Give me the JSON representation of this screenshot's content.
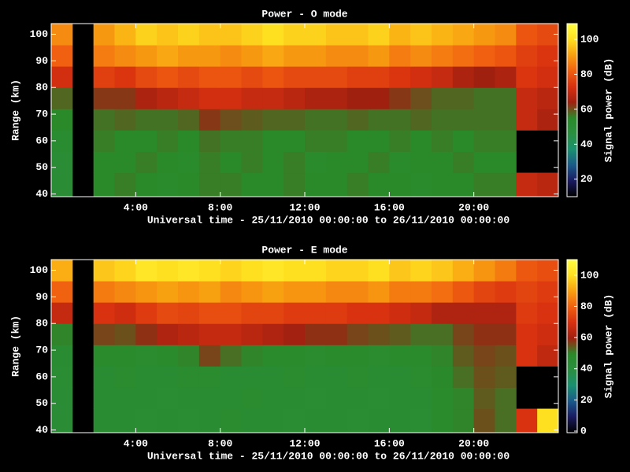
{
  "chart_data": [
    {
      "type": "heatmap",
      "title": "Power - O mode",
      "x_label": "Universal time - 25/11/2010 00:00:00 to 26/11/2010 00:00:00",
      "y_label": "Range (km)",
      "colorbar_label": "Signal power (dB)",
      "xlim": [
        0,
        24
      ],
      "ylim": [
        39,
        104
      ],
      "xticks": [
        {
          "value": 4,
          "label": "4:00"
        },
        {
          "value": 8,
          "label": "8:00"
        },
        {
          "value": 12,
          "label": "12:00"
        },
        {
          "value": 16,
          "label": "16:00"
        },
        {
          "value": 20,
          "label": "20:00"
        }
      ],
      "yticks": [
        40,
        50,
        60,
        70,
        80,
        90,
        100
      ],
      "clim": [
        10,
        109
      ],
      "cticks": [
        20,
        40,
        60,
        80,
        100
      ],
      "colormap": [
        "#000000",
        "#1a1a60",
        "#1a5a8a",
        "#1a9070",
        "#2a9040",
        "#2a8a2a",
        "#a02010",
        "#d83010",
        "#f06010",
        "#f8a010",
        "#ffe020",
        "#ffff40"
      ],
      "x_bins": [
        0,
        1,
        2,
        3,
        4,
        5,
        6,
        7,
        8,
        9,
        10,
        11,
        12,
        13,
        14,
        15,
        16,
        17,
        18,
        19,
        20,
        21,
        22,
        23,
        24
      ],
      "y_bins": [
        39,
        48,
        56,
        64,
        72,
        80,
        88,
        96,
        104
      ],
      "z": [
        [
          50,
          null,
          55,
          56,
          55,
          54,
          55,
          56,
          56,
          55,
          55,
          56,
          55,
          55,
          56,
          55,
          55,
          54,
          55,
          55,
          56,
          56,
          70,
          68
        ],
        [
          50,
          null,
          55,
          55,
          56,
          55,
          54,
          56,
          55,
          56,
          55,
          56,
          54,
          55,
          55,
          56,
          54,
          55,
          55,
          56,
          55,
          55,
          null,
          null
        ],
        [
          52,
          null,
          56,
          55,
          55,
          56,
          55,
          57,
          56,
          56,
          55,
          55,
          56,
          56,
          55,
          55,
          56,
          55,
          56,
          55,
          56,
          56,
          null,
          null
        ],
        [
          55,
          null,
          57,
          58,
          57,
          57,
          58,
          62,
          60,
          59,
          58,
          58,
          57,
          57,
          58,
          57,
          57,
          58,
          57,
          57,
          57,
          57,
          70,
          66
        ],
        [
          58,
          null,
          62,
          62,
          66,
          68,
          70,
          72,
          72,
          70,
          70,
          68,
          66,
          66,
          64,
          64,
          62,
          60,
          58,
          58,
          57,
          57,
          70,
          68
        ],
        [
          72,
          null,
          76,
          74,
          78,
          80,
          78,
          80,
          80,
          78,
          80,
          78,
          78,
          78,
          76,
          76,
          74,
          72,
          70,
          66,
          64,
          66,
          74,
          72
        ],
        [
          82,
          null,
          86,
          88,
          90,
          92,
          90,
          90,
          88,
          90,
          92,
          90,
          90,
          88,
          88,
          90,
          86,
          88,
          86,
          84,
          82,
          80,
          76,
          74
        ],
        [
          88,
          null,
          90,
          94,
          98,
          96,
          98,
          96,
          96,
          98,
          100,
          98,
          98,
          96,
          96,
          98,
          94,
          96,
          94,
          92,
          90,
          88,
          80,
          78
        ]
      ]
    },
    {
      "type": "heatmap",
      "title": "Power - E mode",
      "x_label": "Universal time - 25/11/2010 00:00:00 to 26/11/2010 00:00:00",
      "y_label": "Range (km)",
      "colorbar_label": "Signal power (dB)",
      "xlim": [
        0,
        24
      ],
      "ylim": [
        39,
        104
      ],
      "xticks": [
        {
          "value": 4,
          "label": "4:00"
        },
        {
          "value": 8,
          "label": "8:00"
        },
        {
          "value": 12,
          "label": "12:00"
        },
        {
          "value": 16,
          "label": "16:00"
        },
        {
          "value": 20,
          "label": "20:00"
        }
      ],
      "yticks": [
        40,
        50,
        60,
        70,
        80,
        90,
        100
      ],
      "clim": [
        -1,
        110
      ],
      "cticks": [
        0,
        20,
        40,
        60,
        80,
        100
      ],
      "colormap": [
        "#000000",
        "#1a1a60",
        "#1a5a8a",
        "#1a9070",
        "#2a9040",
        "#2a8a2a",
        "#a02010",
        "#d83010",
        "#f06010",
        "#f8a010",
        "#ffe020",
        "#ffff40"
      ],
      "x_bins": [
        0,
        1,
        2,
        3,
        4,
        5,
        6,
        7,
        8,
        9,
        10,
        11,
        12,
        13,
        14,
        15,
        16,
        17,
        18,
        19,
        20,
        21,
        22,
        23,
        24
      ],
      "y_bins": [
        39,
        48,
        56,
        64,
        72,
        80,
        88,
        96,
        104
      ],
      "z": [
        [
          44,
          null,
          46,
          46,
          45,
          46,
          45,
          46,
          47,
          46,
          46,
          45,
          46,
          46,
          45,
          46,
          46,
          45,
          48,
          50,
          55,
          52,
          70,
          100
        ],
        [
          44,
          null,
          46,
          46,
          46,
          45,
          46,
          46,
          46,
          47,
          46,
          46,
          45,
          46,
          46,
          45,
          46,
          46,
          48,
          50,
          54,
          52,
          null,
          null
        ],
        [
          45,
          null,
          46,
          47,
          46,
          46,
          47,
          47,
          46,
          46,
          46,
          47,
          46,
          46,
          47,
          46,
          46,
          47,
          49,
          52,
          55,
          54,
          null,
          null
        ],
        [
          46,
          null,
          48,
          48,
          47,
          48,
          50,
          56,
          52,
          50,
          48,
          48,
          47,
          48,
          48,
          47,
          48,
          48,
          50,
          54,
          56,
          55,
          70,
          65
        ],
        [
          50,
          null,
          56,
          55,
          58,
          62,
          64,
          66,
          66,
          64,
          62,
          60,
          58,
          58,
          56,
          55,
          54,
          52,
          52,
          56,
          58,
          58,
          70,
          68
        ],
        [
          66,
          null,
          70,
          68,
          72,
          75,
          74,
          76,
          76,
          74,
          74,
          72,
          72,
          72,
          70,
          70,
          68,
          66,
          62,
          62,
          62,
          62,
          72,
          70
        ],
        [
          80,
          null,
          84,
          86,
          88,
          90,
          88,
          90,
          86,
          88,
          90,
          88,
          88,
          86,
          86,
          88,
          84,
          84,
          82,
          78,
          74,
          72,
          74,
          72
        ],
        [
          92,
          null,
          96,
          98,
          102,
          100,
          102,
          100,
          98,
          100,
          102,
          100,
          100,
          98,
          98,
          100,
          96,
          98,
          96,
          92,
          88,
          84,
          78,
          76
        ]
      ]
    }
  ]
}
